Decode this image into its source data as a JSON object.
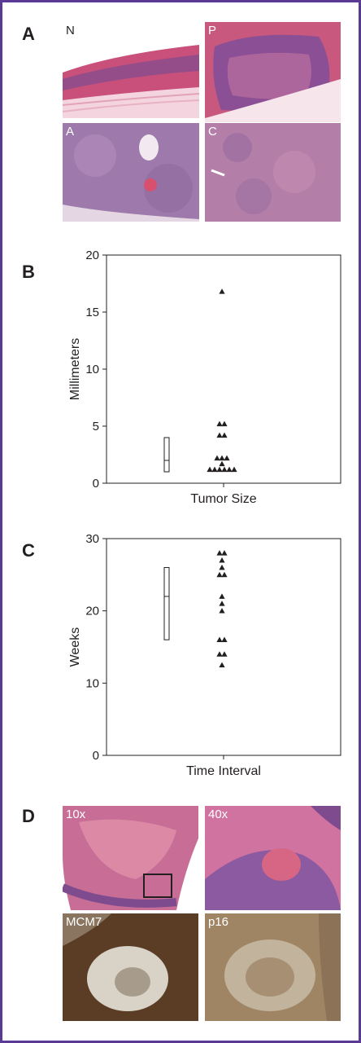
{
  "panels": {
    "A": {
      "letter": "A",
      "images": [
        {
          "label": "N",
          "tone": "he-normal"
        },
        {
          "label": "P",
          "tone": "he-papilloma"
        },
        {
          "label": "A",
          "tone": "he-atypical"
        },
        {
          "label": "C",
          "tone": "he-carcinoma"
        }
      ]
    },
    "B": {
      "letter": "B"
    },
    "C": {
      "letter": "C"
    },
    "D": {
      "letter": "D",
      "images": [
        {
          "label": "10x",
          "tone": "he-low-mag"
        },
        {
          "label": "40x",
          "tone": "he-high-mag"
        },
        {
          "label": "MCM7",
          "tone": "ihc-mcm7"
        },
        {
          "label": "p16",
          "tone": "ihc-p16"
        }
      ]
    }
  },
  "colors": {
    "he_pink": "#d1607e",
    "he_purple": "#7e4c8e",
    "ihc_brown": "#6a4a2a",
    "ihc_tan": "#a78a6c",
    "frame": "#5b3a96"
  },
  "chart_data": [
    {
      "type": "scatter",
      "xlabel": "Tumor Size",
      "ylabel": "Millimeters",
      "ylim": [
        0,
        20
      ],
      "yticks": [
        0,
        5,
        10,
        15,
        20
      ],
      "grid": false,
      "box": {
        "whisker_low": 1,
        "median": 2,
        "whisker_high": 4
      },
      "points": [
        {
          "y": 1.2
        },
        {
          "y": 1.2
        },
        {
          "y": 1.2
        },
        {
          "y": 1.2
        },
        {
          "y": 1.2
        },
        {
          "y": 1.2
        },
        {
          "y": 1.7
        },
        {
          "y": 2.2
        },
        {
          "y": 2.2
        },
        {
          "y": 2.2
        },
        {
          "y": 4.2
        },
        {
          "y": 4.2
        },
        {
          "y": 5.2
        },
        {
          "y": 5.2
        },
        {
          "y": 16.8
        }
      ]
    },
    {
      "type": "scatter",
      "xlabel": "Time Interval",
      "ylabel": "Weeks",
      "ylim": [
        0,
        30
      ],
      "yticks": [
        0,
        10,
        20,
        30
      ],
      "grid": false,
      "box": {
        "whisker_low": 16,
        "median": 22,
        "whisker_high": 26
      },
      "points": [
        {
          "y": 28
        },
        {
          "y": 28
        },
        {
          "y": 27
        },
        {
          "y": 26
        },
        {
          "y": 25
        },
        {
          "y": 25
        },
        {
          "y": 22
        },
        {
          "y": 21
        },
        {
          "y": 20
        },
        {
          "y": 16
        },
        {
          "y": 16
        },
        {
          "y": 14
        },
        {
          "y": 14
        },
        {
          "y": 12.5
        }
      ]
    }
  ]
}
